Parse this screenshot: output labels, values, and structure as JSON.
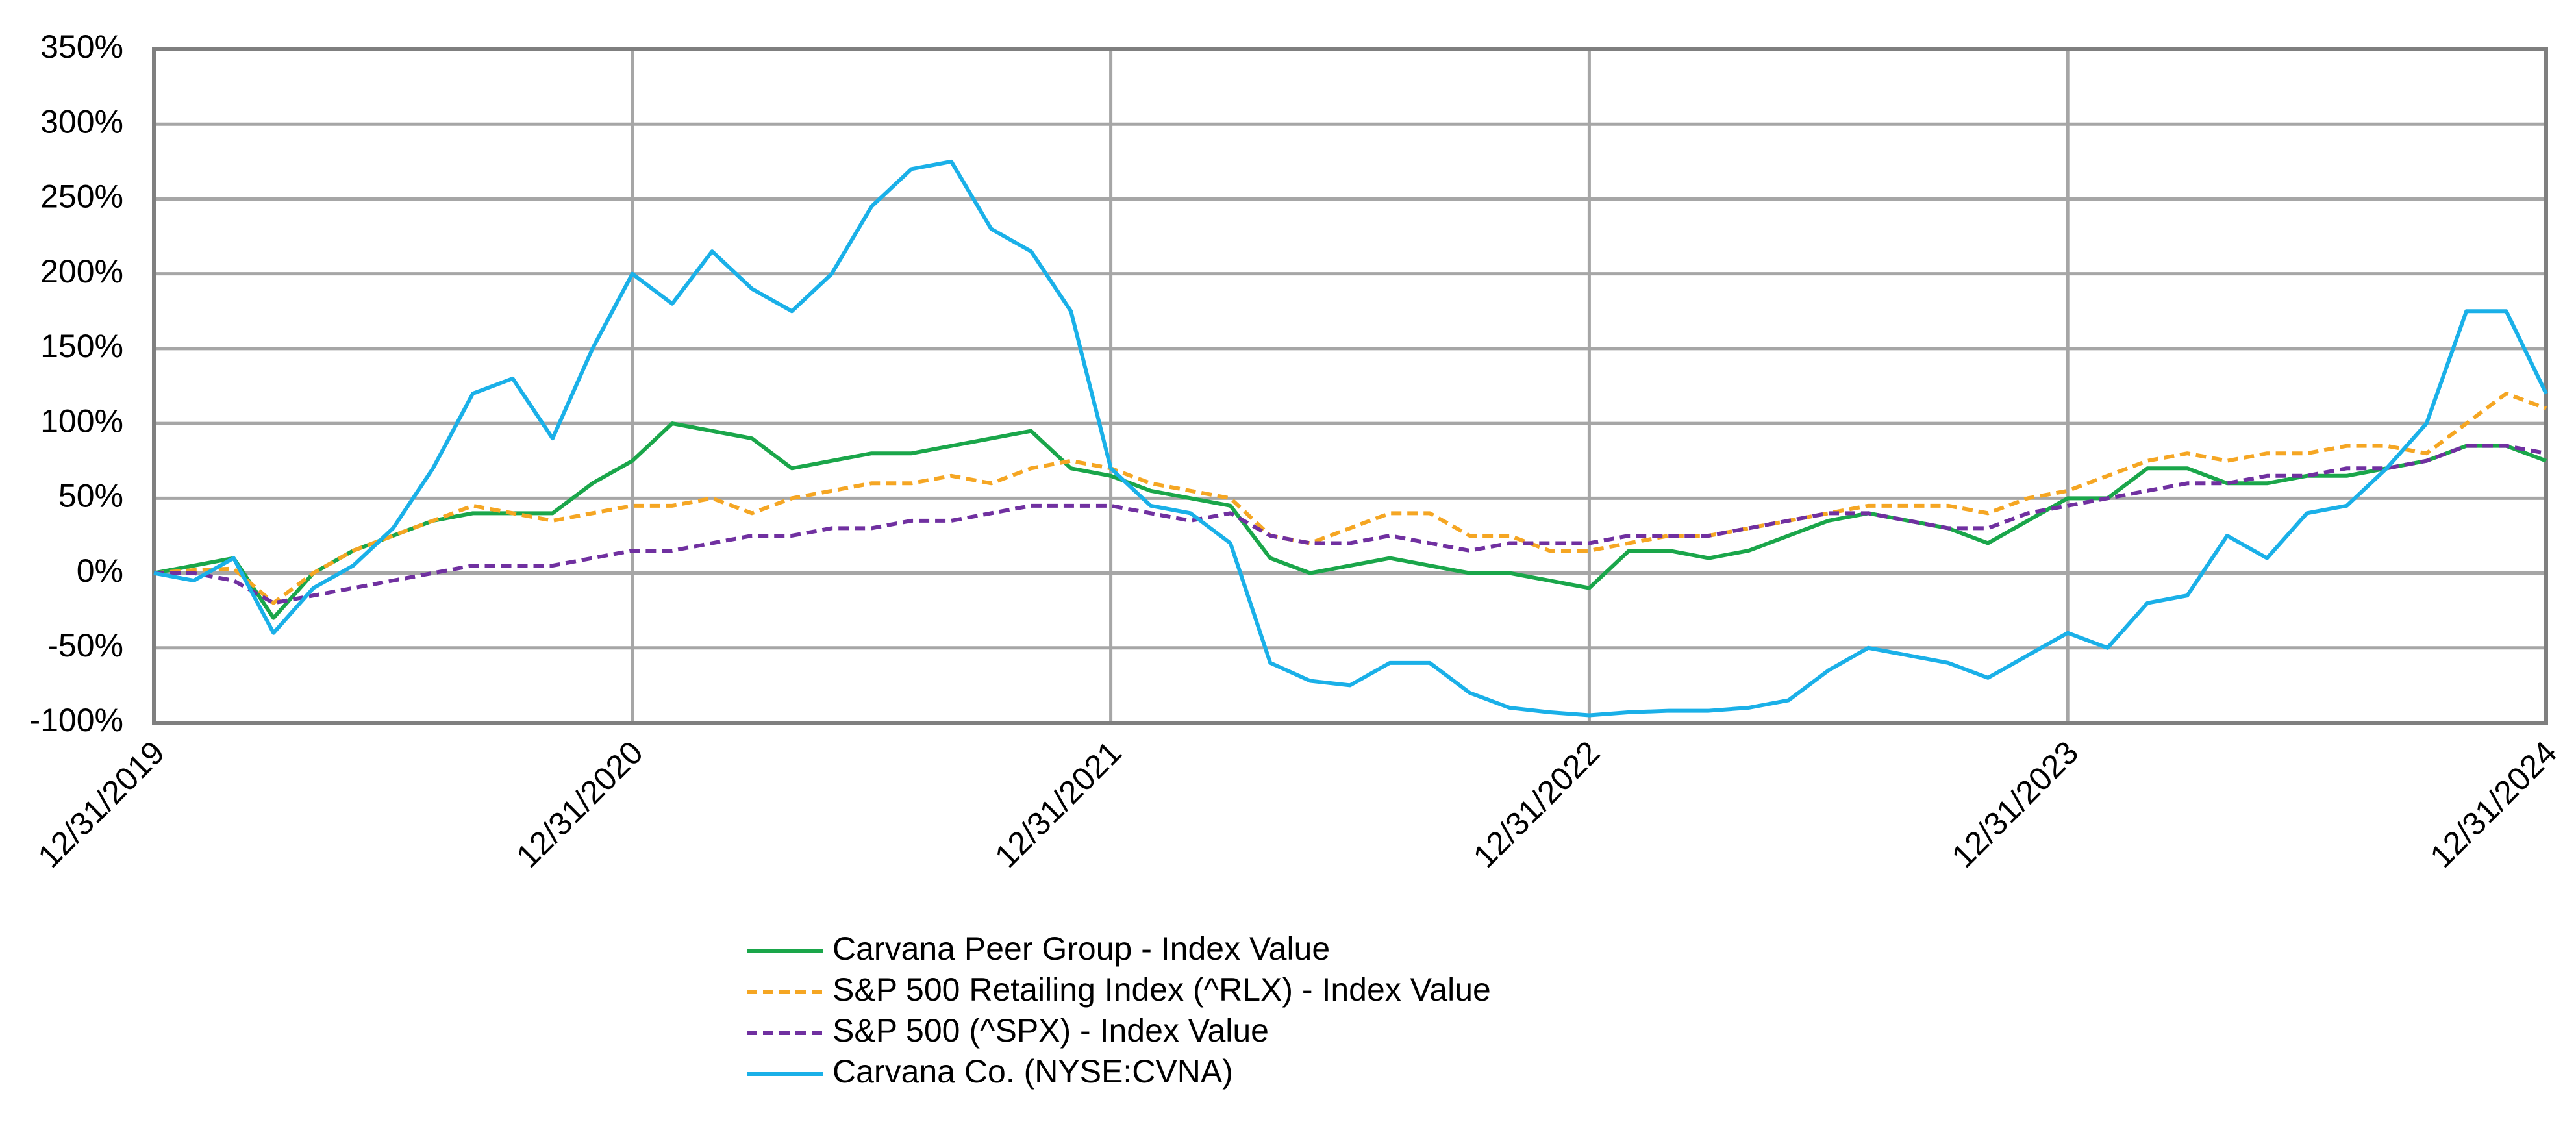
{
  "chart_data": {
    "type": "line",
    "x": [
      0,
      1,
      2,
      3,
      4,
      5,
      6,
      7,
      8,
      9,
      10,
      11,
      12,
      13,
      14,
      15,
      16,
      17,
      18,
      19,
      20,
      21,
      22,
      23,
      24,
      25,
      26,
      27,
      28,
      29,
      30,
      31,
      32,
      33,
      34,
      35,
      36,
      37,
      38,
      39,
      40,
      41,
      42,
      43,
      44,
      45,
      46,
      47,
      48,
      49,
      50,
      51,
      52,
      53,
      54,
      55,
      56,
      57,
      58,
      59,
      60
    ],
    "xlim": [
      0,
      60
    ],
    "xticks": [
      {
        "value": 0,
        "label": "12/31/2019"
      },
      {
        "value": 12,
        "label": "12/31/2020"
      },
      {
        "value": 24,
        "label": "12/31/2021"
      },
      {
        "value": 36,
        "label": "12/31/2022"
      },
      {
        "value": 48,
        "label": "12/31/2023"
      },
      {
        "value": 60,
        "label": "12/31/2024"
      }
    ],
    "ylim": [
      -100,
      350
    ],
    "yticks": [
      {
        "value": -100,
        "label": "-100%"
      },
      {
        "value": -50,
        "label": "-50%"
      },
      {
        "value": 0,
        "label": "0%"
      },
      {
        "value": 50,
        "label": "50%"
      },
      {
        "value": 100,
        "label": "100%"
      },
      {
        "value": 150,
        "label": "150%"
      },
      {
        "value": 200,
        "label": "200%"
      },
      {
        "value": 250,
        "label": "250%"
      },
      {
        "value": 300,
        "label": "300%"
      },
      {
        "value": 350,
        "label": "350%"
      }
    ],
    "grid": true,
    "series": [
      {
        "name": "Carvana Peer Group - Index Value",
        "color": "#1aa64a",
        "line_style": "solid",
        "values": [
          0,
          5,
          10,
          -30,
          0,
          15,
          25,
          35,
          40,
          40,
          40,
          60,
          75,
          100,
          95,
          90,
          70,
          75,
          80,
          80,
          85,
          90,
          95,
          70,
          65,
          55,
          50,
          45,
          10,
          0,
          5,
          10,
          5,
          0,
          0,
          -5,
          -10,
          15,
          15,
          10,
          15,
          25,
          35,
          40,
          35,
          30,
          20,
          35,
          50,
          50,
          70,
          70,
          60,
          60,
          65,
          65,
          70,
          75,
          85,
          85,
          75
        ]
      },
      {
        "name": "S&P 500 Retailing Index (^RLX) - Index Value",
        "color": "#f5a623",
        "line_style": "dashed",
        "values": [
          0,
          2,
          3,
          -20,
          0,
          15,
          25,
          35,
          45,
          40,
          35,
          40,
          45,
          45,
          50,
          40,
          50,
          55,
          60,
          60,
          65,
          60,
          70,
          75,
          70,
          60,
          55,
          50,
          25,
          20,
          30,
          40,
          40,
          25,
          25,
          15,
          15,
          20,
          25,
          25,
          30,
          35,
          40,
          45,
          45,
          45,
          40,
          50,
          55,
          65,
          75,
          80,
          75,
          80,
          80,
          85,
          85,
          80,
          100,
          120,
          110
        ]
      },
      {
        "name": "S&P 500 (^SPX) - Index Value",
        "color": "#7030a0",
        "line_style": "dashed",
        "values": [
          0,
          0,
          -5,
          -20,
          -15,
          -10,
          -5,
          0,
          5,
          5,
          5,
          10,
          15,
          15,
          20,
          25,
          25,
          30,
          30,
          35,
          35,
          40,
          45,
          45,
          45,
          40,
          35,
          40,
          25,
          20,
          20,
          25,
          20,
          15,
          20,
          20,
          20,
          25,
          25,
          25,
          30,
          35,
          40,
          40,
          35,
          30,
          30,
          40,
          45,
          50,
          55,
          60,
          60,
          65,
          65,
          70,
          70,
          75,
          85,
          85,
          80
        ]
      },
      {
        "name": "Carvana Co. (NYSE:CVNA)",
        "color": "#1ab0e8",
        "line_style": "solid",
        "values": [
          0,
          -5,
          10,
          -40,
          -10,
          5,
          30,
          70,
          120,
          130,
          90,
          150,
          200,
          180,
          215,
          190,
          175,
          200,
          245,
          270,
          275,
          230,
          215,
          175,
          70,
          45,
          40,
          20,
          -60,
          -72,
          -75,
          -60,
          -60,
          -80,
          -90,
          -93,
          -95,
          -93,
          -92,
          -92,
          -90,
          -85,
          -65,
          -50,
          -55,
          -60,
          -70,
          -55,
          -40,
          -50,
          -20,
          -15,
          25,
          10,
          40,
          45,
          70,
          100,
          175,
          175,
          120
        ]
      }
    ]
  }
}
